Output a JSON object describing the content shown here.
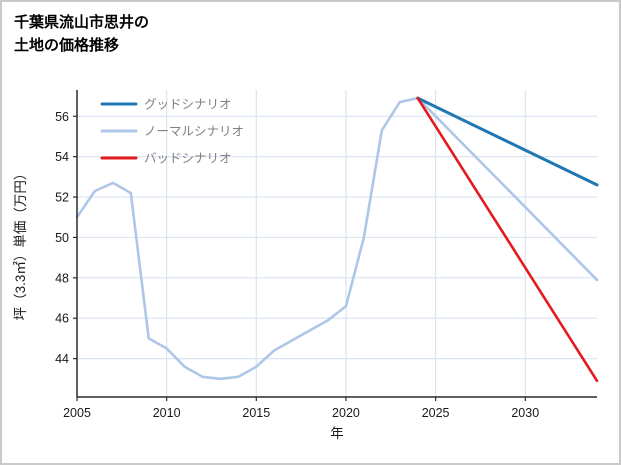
{
  "title": {
    "line1": "千葉県流山市思井の",
    "line2": "土地の価格推移"
  },
  "chart_data": {
    "type": "line",
    "title": "千葉県流山市思井の土地の価格推移",
    "xlabel": "年",
    "ylabel": "坪（3.3㎡）単価（万円）",
    "xlim": [
      2005,
      2034
    ],
    "ylim": [
      42.1,
      57.3
    ],
    "xticks": [
      2005,
      2010,
      2015,
      2020,
      2025,
      2030
    ],
    "yticks": [
      44,
      46,
      48,
      50,
      52,
      54,
      56
    ],
    "grid": true,
    "legend_position": "upper left",
    "colors": {
      "grid": "#dbe4f2",
      "axis": "#2b2b2b",
      "tick_label": "#1a1a1a",
      "legend_text": "#808080",
      "background": "#ffffff"
    },
    "series": [
      {
        "name": "グッドシナリオ",
        "color": "#1f77b4",
        "width": 3,
        "x": [
          2024,
          2034
        ],
        "y": [
          56.9,
          52.6
        ]
      },
      {
        "name": "ノーマルシナリオ",
        "color": "#aec7e8",
        "width": 2.6,
        "x": [
          2005,
          2006,
          2007,
          2008,
          2009,
          2010,
          2011,
          2012,
          2013,
          2014,
          2015,
          2016,
          2017,
          2018,
          2019,
          2020,
          2021,
          2022,
          2023,
          2024,
          2034
        ],
        "y": [
          51.0,
          52.3,
          52.7,
          52.2,
          45.0,
          44.5,
          43.6,
          43.1,
          43.0,
          43.1,
          43.6,
          44.4,
          44.9,
          45.4,
          45.9,
          46.6,
          50.0,
          55.3,
          56.7,
          56.9,
          47.9
        ]
      },
      {
        "name": "バッドシナリオ",
        "color": "#e41a1c",
        "width": 2.6,
        "x": [
          2024,
          2034
        ],
        "y": [
          56.9,
          42.9
        ]
      }
    ]
  }
}
